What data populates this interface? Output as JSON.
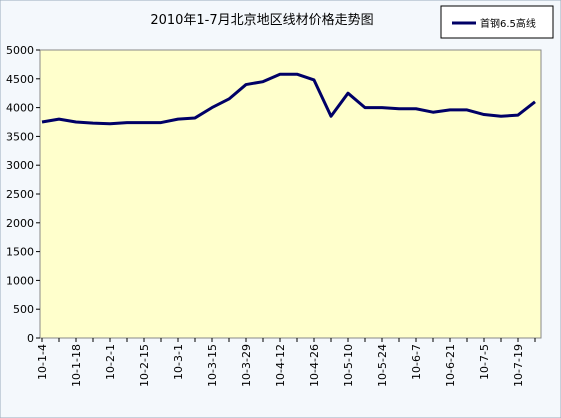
{
  "chart_data": {
    "type": "line",
    "title": "2010年1-7月北京地区线材价格走势图",
    "categories": [
      "10-1-4",
      null,
      "10-1-18",
      null,
      "10-2-1",
      null,
      "10-2-15",
      null,
      "10-3-1",
      null,
      "10-3-15",
      null,
      "10-3-29",
      null,
      "10-4-12",
      null,
      "10-4-26",
      null,
      "10-5-10",
      null,
      "10-5-24",
      null,
      "10-6-7",
      null,
      "10-6-21",
      null,
      "10-7-5",
      null,
      "10-7-19",
      null
    ],
    "series": [
      {
        "name": "首钢6.5高线",
        "color": "#000066",
        "values": [
          3750,
          3800,
          3750,
          3730,
          3720,
          3740,
          3740,
          3740,
          3800,
          3820,
          4000,
          4150,
          4400,
          4450,
          4580,
          4580,
          4480,
          3850,
          4250,
          4000,
          4000,
          3980,
          3980,
          3920,
          3960,
          3960,
          3880,
          3850,
          3870,
          4100
        ]
      }
    ],
    "ylim": [
      0,
      5000
    ],
    "yticks": [
      0,
      500,
      1000,
      1500,
      2000,
      2500,
      3000,
      3500,
      4000,
      4500,
      5000
    ],
    "legend": "top-right"
  }
}
